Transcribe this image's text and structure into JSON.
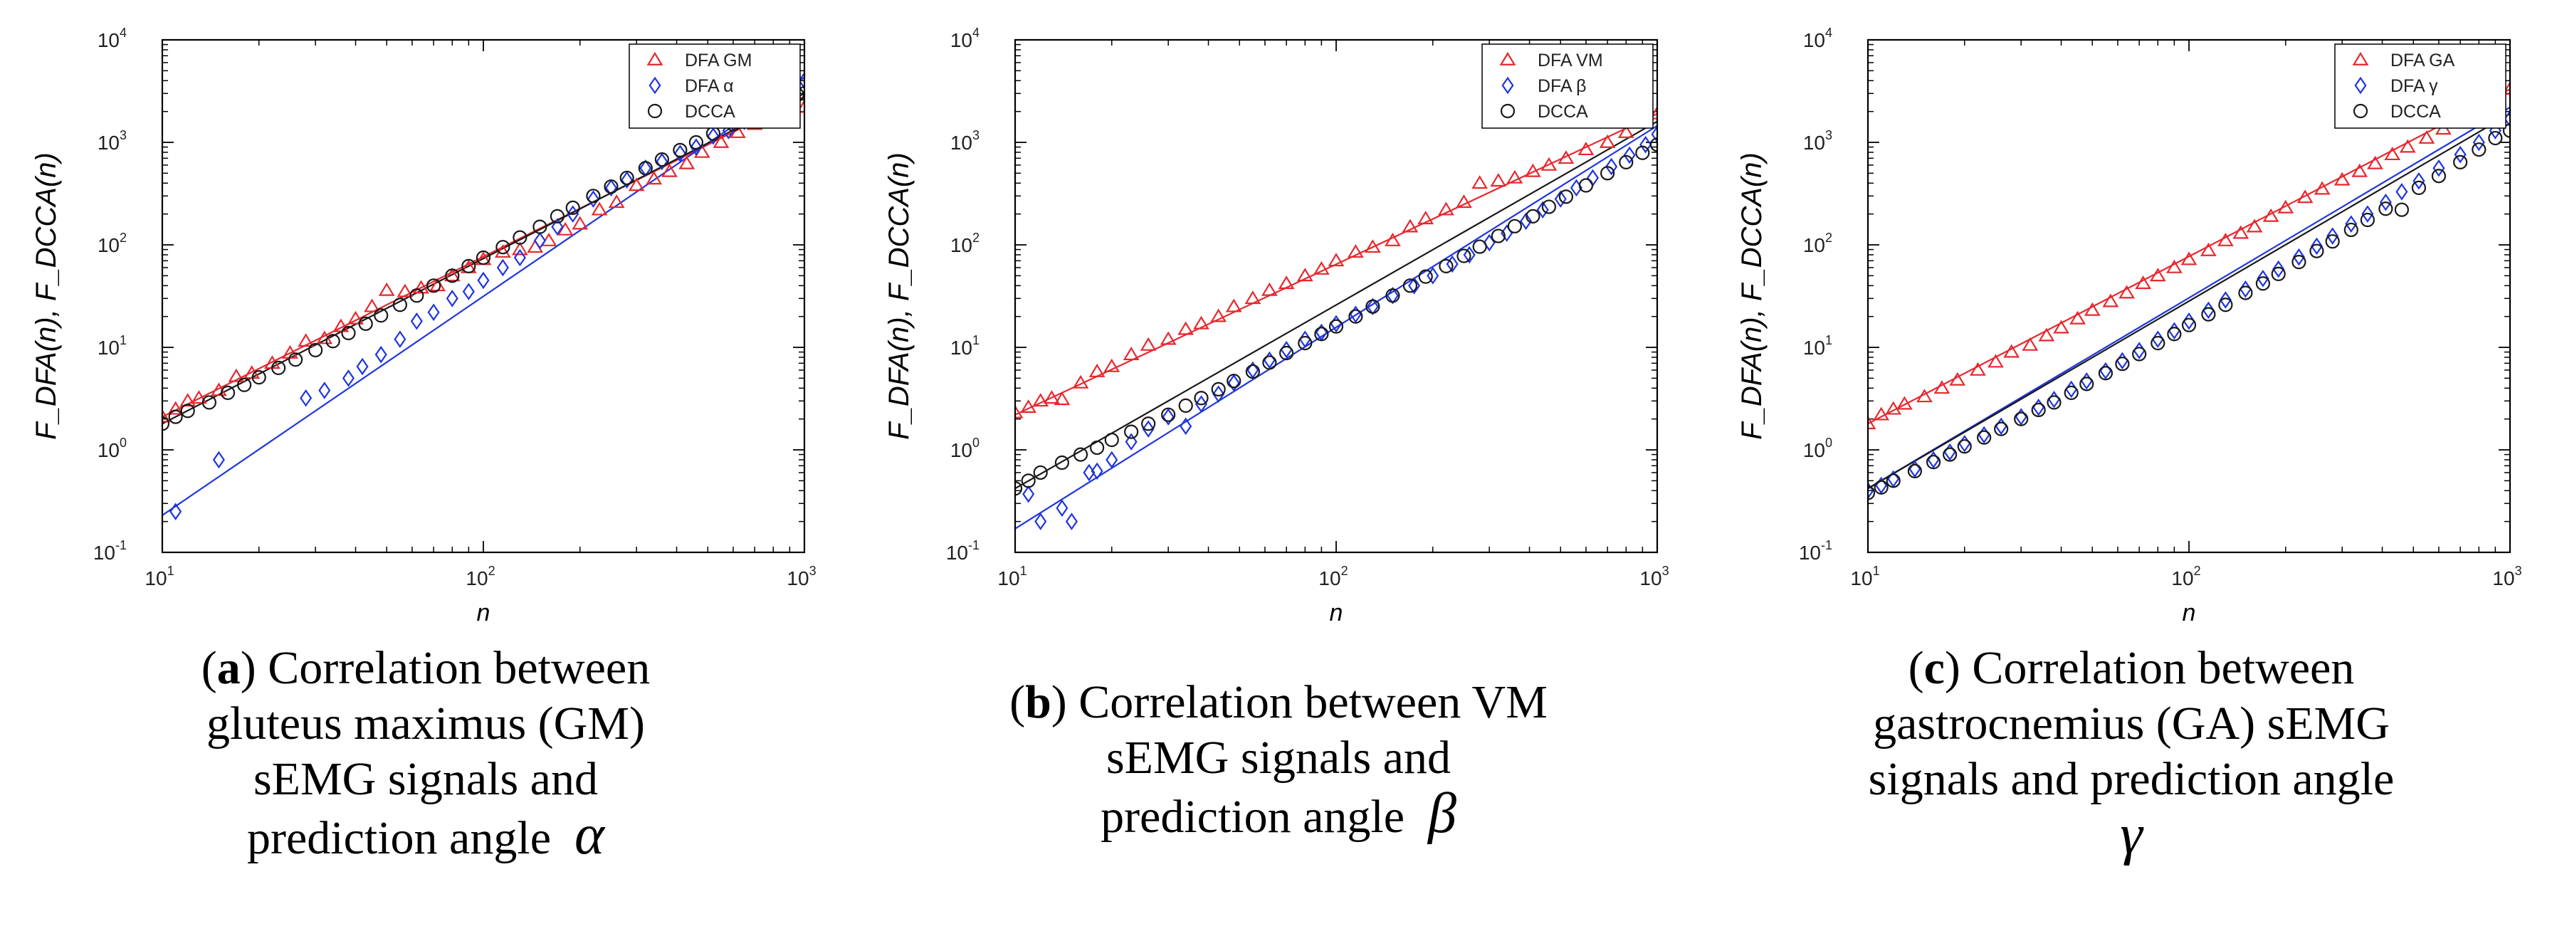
{
  "chart_data": [
    {
      "type": "scatter",
      "panel": "a",
      "xlabel": "n",
      "ylabel": "F_DFA(n), F_DCCA(n)",
      "xscale": "log",
      "yscale": "log",
      "xlim": [
        10,
        1000
      ],
      "ylim": [
        0.1,
        10000
      ],
      "x_ticks": [
        {
          "base": "10",
          "exp": "1"
        },
        {
          "base": "10",
          "exp": "2"
        },
        {
          "base": "10",
          "exp": "3"
        }
      ],
      "y_ticks": [
        {
          "base": "10",
          "exp": "-1"
        },
        {
          "base": "10",
          "exp": "0"
        },
        {
          "base": "10",
          "exp": "1"
        },
        {
          "base": "10",
          "exp": "2"
        },
        {
          "base": "10",
          "exp": "3"
        },
        {
          "base": "10",
          "exp": "4"
        }
      ],
      "legend_position": "top-right",
      "caption": {
        "label": "a",
        "lines": [
          "Correlation between",
          "gluteus maximus (GM)",
          "sEMG signals and",
          "prediction angle"
        ],
        "greek": "α"
      },
      "series": [
        {
          "name": "DFA GM",
          "marker": "triangle",
          "color": "#e8282e",
          "fit": {
            "x": [
              10,
              1000
            ],
            "y": [
              2.1,
              2800
            ]
          },
          "x": [
            10,
            11,
            12,
            13,
            15,
            17,
            19,
            22,
            25,
            28,
            32,
            36,
            40,
            45,
            50,
            57,
            64,
            72,
            80,
            90,
            100,
            115,
            130,
            145,
            160,
            180,
            200,
            230,
            260,
            300,
            340,
            380,
            430,
            480,
            550,
            620,
            700,
            800,
            900,
            1000
          ],
          "y": [
            2.1,
            2.5,
            3.0,
            3.2,
            3.8,
            5.2,
            5.6,
            7.0,
            8.8,
            11.5,
            12.2,
            16,
            19,
            25,
            36,
            35,
            38,
            40,
            50,
            60,
            72,
            85,
            90,
            95,
            110,
            140,
            160,
            220,
            260,
            380,
            440,
            520,
            620,
            800,
            1000,
            1250,
            1500,
            1800,
            2200,
            2200
          ]
        },
        {
          "name": "DFA α",
          "marker": "diamond",
          "color": "#1f35e0",
          "fit": {
            "x": [
              10,
              1000
            ],
            "y": [
              0.23,
              4300
            ]
          },
          "x": [
            11,
            15,
            28,
            32,
            38,
            42,
            48,
            55,
            62,
            70,
            80,
            90,
            100,
            115,
            130,
            150,
            170,
            190,
            220,
            250,
            280,
            320,
            360,
            410,
            460,
            520,
            580,
            650,
            720,
            800,
            900,
            1000
          ],
          "y": [
            0.25,
            0.8,
            3.2,
            3.8,
            5.0,
            6.5,
            8.5,
            12,
            18,
            22,
            30,
            35,
            45,
            60,
            75,
            110,
            150,
            200,
            280,
            360,
            430,
            560,
            650,
            780,
            900,
            1150,
            1300,
            1600,
            1900,
            2300,
            2900,
            4000
          ]
        },
        {
          "name": "DCCA",
          "marker": "circle",
          "color": "#1a1a1a",
          "fit": {
            "x": [
              10,
              1000
            ],
            "y": [
              1.8,
              3000
            ]
          },
          "x": [
            10,
            11,
            12,
            14,
            16,
            18,
            20,
            23,
            26,
            30,
            34,
            38,
            43,
            48,
            55,
            62,
            70,
            80,
            90,
            100,
            115,
            130,
            150,
            170,
            190,
            220,
            250,
            280,
            320,
            360,
            410,
            460,
            520,
            600,
            680,
            760,
            850,
            950,
            1000
          ],
          "y": [
            1.8,
            2.1,
            2.4,
            2.9,
            3.6,
            4.3,
            5.1,
            6.3,
            7.6,
            9.4,
            11.5,
            13.8,
            17,
            20.5,
            26,
            32,
            40,
            50,
            62,
            75,
            95,
            118,
            150,
            190,
            230,
            300,
            370,
            450,
            560,
            680,
            840,
            1000,
            1220,
            1500,
            1820,
            2150,
            2500,
            2900,
            3000
          ]
        }
      ]
    },
    {
      "type": "scatter",
      "panel": "b",
      "xlabel": "n",
      "ylabel": "F_DFA(n), F_DCCA(n)",
      "xscale": "log",
      "yscale": "log",
      "xlim": [
        10,
        1000
      ],
      "ylim": [
        0.1,
        10000
      ],
      "x_ticks": [
        {
          "base": "10",
          "exp": "1"
        },
        {
          "base": "10",
          "exp": "2"
        },
        {
          "base": "10",
          "exp": "3"
        }
      ],
      "y_ticks": [
        {
          "base": "10",
          "exp": "-1"
        },
        {
          "base": "10",
          "exp": "0"
        },
        {
          "base": "10",
          "exp": "1"
        },
        {
          "base": "10",
          "exp": "2"
        },
        {
          "base": "10",
          "exp": "3"
        },
        {
          "base": "10",
          "exp": "4"
        }
      ],
      "legend_position": "top-right",
      "caption": {
        "label": "b",
        "lines": [
          "Correlation between VM",
          "sEMG signals and",
          "prediction angle"
        ],
        "greek": "β"
      },
      "series": [
        {
          "name": "DFA VM",
          "marker": "triangle",
          "color": "#e8282e",
          "fit": {
            "x": [
              10,
              1000
            ],
            "y": [
              2.2,
              1900
            ]
          },
          "x": [
            10,
            11,
            12,
            13,
            14,
            16,
            18,
            20,
            23,
            26,
            30,
            34,
            38,
            43,
            48,
            55,
            62,
            70,
            80,
            90,
            100,
            115,
            130,
            150,
            170,
            190,
            220,
            250,
            280,
            320,
            360,
            410,
            460,
            520,
            600,
            700,
            800,
            900,
            1000
          ],
          "y": [
            2.3,
            2.6,
            3.0,
            3.2,
            3.1,
            4.5,
            5.8,
            6.5,
            8.5,
            10.5,
            12,
            15,
            17,
            20,
            25,
            30,
            36,
            42,
            50,
            58,
            70,
            85,
            95,
            110,
            150,
            180,
            220,
            260,
            400,
            420,
            450,
            520,
            600,
            700,
            850,
            1000,
            1250,
            1600,
            1900
          ]
        },
        {
          "name": "DFA β",
          "marker": "diamond",
          "color": "#1f35e0",
          "fit": {
            "x": [
              10,
              1000
            ],
            "y": [
              0.17,
              1450
            ]
          },
          "x": [
            11,
            12,
            14,
            15,
            17,
            18,
            20,
            23,
            26,
            30,
            34,
            38,
            43,
            48,
            55,
            62,
            70,
            80,
            90,
            100,
            115,
            130,
            150,
            175,
            200,
            230,
            260,
            300,
            340,
            390,
            440,
            500,
            560,
            630,
            720,
            820,
            920,
            1000
          ],
          "y": [
            0.37,
            0.2,
            0.27,
            0.2,
            0.6,
            0.62,
            0.8,
            1.2,
            1.6,
            2.1,
            1.7,
            2.8,
            3.5,
            4.5,
            6.0,
            7.5,
            9.5,
            12,
            14,
            17,
            21,
            25,
            32,
            40,
            50,
            65,
            80,
            105,
            130,
            170,
            220,
            280,
            360,
            450,
            580,
            750,
            950,
            1200
          ]
        },
        {
          "name": "DCCA",
          "marker": "circle",
          "color": "#1a1a1a",
          "fit": {
            "x": [
              10,
              1000
            ],
            "y": [
              0.42,
              1600
            ]
          },
          "x": [
            10,
            11,
            12,
            14,
            16,
            18,
            20,
            23,
            26,
            30,
            34,
            38,
            43,
            48,
            55,
            62,
            70,
            80,
            90,
            100,
            115,
            130,
            150,
            170,
            190,
            220,
            250,
            280,
            320,
            360,
            410,
            460,
            520,
            600,
            700,
            800,
            900,
            1000
          ],
          "y": [
            0.42,
            0.5,
            0.6,
            0.75,
            0.9,
            1.05,
            1.25,
            1.5,
            1.8,
            2.2,
            2.7,
            3.2,
            3.9,
            4.7,
            5.8,
            7.1,
            8.8,
            11,
            13.5,
            16,
            20,
            25,
            32,
            40,
            49,
            62,
            78,
            96,
            122,
            152,
            190,
            235,
            295,
            380,
            500,
            640,
            790,
            950
          ]
        }
      ]
    },
    {
      "type": "scatter",
      "panel": "c",
      "xlabel": "n",
      "ylabel": "F_DFA(n), F_DCCA(n)",
      "xscale": "log",
      "yscale": "log",
      "xlim": [
        10,
        1000
      ],
      "ylim": [
        0.1,
        10000
      ],
      "x_ticks": [
        {
          "base": "10",
          "exp": "1"
        },
        {
          "base": "10",
          "exp": "2"
        },
        {
          "base": "10",
          "exp": "3"
        }
      ],
      "y_ticks": [
        {
          "base": "10",
          "exp": "-1"
        },
        {
          "base": "10",
          "exp": "0"
        },
        {
          "base": "10",
          "exp": "1"
        },
        {
          "base": "10",
          "exp": "2"
        },
        {
          "base": "10",
          "exp": "3"
        },
        {
          "base": "10",
          "exp": "4"
        }
      ],
      "legend_position": "top-right",
      "caption": {
        "label": "c",
        "lines": [
          "Correlation between",
          "gastrocnemius (GA) sEMG",
          "signals and prediction angle"
        ],
        "greek": "γ"
      },
      "series": [
        {
          "name": "DFA GA",
          "marker": "triangle",
          "color": "#e8282e",
          "fit": {
            "x": [
              10,
              1000
            ],
            "y": [
              1.8,
              3300
            ]
          },
          "x": [
            10,
            11,
            12,
            13,
            15,
            17,
            19,
            22,
            25,
            28,
            32,
            36,
            40,
            45,
            50,
            57,
            64,
            72,
            80,
            90,
            100,
            115,
            130,
            145,
            160,
            180,
            200,
            230,
            260,
            300,
            340,
            380,
            430,
            480,
            550,
            620,
            700,
            800,
            900,
            1000
          ],
          "y": [
            1.8,
            2.2,
            2.5,
            2.8,
            3.3,
            4.0,
            4.8,
            6.0,
            7.2,
            9.0,
            10.5,
            13,
            15.5,
            19,
            23,
            28,
            34,
            42,
            50,
            60,
            72,
            88,
            110,
            130,
            150,
            190,
            230,
            290,
            350,
            430,
            520,
            620,
            760,
            900,
            1100,
            1350,
            1650,
            2100,
            2600,
            3300
          ]
        },
        {
          "name": "DFA γ",
          "marker": "diamond",
          "color": "#1f35e0",
          "fit": {
            "x": [
              10,
              1000
            ],
            "y": [
              0.42,
              2200
            ]
          },
          "x": [
            10,
            11,
            12,
            14,
            16,
            18,
            20,
            23,
            26,
            30,
            34,
            38,
            43,
            48,
            55,
            62,
            70,
            80,
            90,
            100,
            115,
            130,
            150,
            170,
            190,
            220,
            250,
            280,
            320,
            360,
            410,
            460,
            520,
            600,
            700,
            800,
            900,
            1000
          ],
          "y": [
            0.4,
            0.45,
            0.52,
            0.65,
            0.8,
            0.95,
            1.15,
            1.4,
            1.7,
            2.1,
            2.6,
            3.1,
            3.9,
            4.7,
            5.9,
            7.4,
            9.3,
            12,
            14.5,
            18,
            23,
            29,
            37,
            47,
            58,
            76,
            97,
            122,
            160,
            200,
            260,
            330,
            420,
            560,
            760,
            1000,
            1300,
            1700
          ]
        },
        {
          "name": "DCCA",
          "marker": "circle",
          "color": "#1a1a1a",
          "fit": {
            "x": [
              10,
              1000
            ],
            "y": [
              0.42,
              1900
            ]
          },
          "x": [
            10,
            11,
            12,
            14,
            16,
            18,
            20,
            23,
            26,
            30,
            34,
            38,
            43,
            48,
            55,
            62,
            70,
            80,
            90,
            100,
            115,
            130,
            150,
            170,
            190,
            220,
            250,
            280,
            320,
            360,
            410,
            460,
            520,
            600,
            700,
            800,
            900,
            1000
          ],
          "y": [
            0.38,
            0.43,
            0.5,
            0.62,
            0.76,
            0.9,
            1.08,
            1.32,
            1.6,
            2.0,
            2.45,
            2.9,
            3.6,
            4.4,
            5.6,
            6.9,
            8.6,
            11,
            13.5,
            16.5,
            21,
            26,
            34,
            42,
            52,
            68,
            87,
            108,
            140,
            175,
            225,
            220,
            360,
            470,
            640,
            850,
            1100,
            1300
          ]
        }
      ]
    }
  ]
}
